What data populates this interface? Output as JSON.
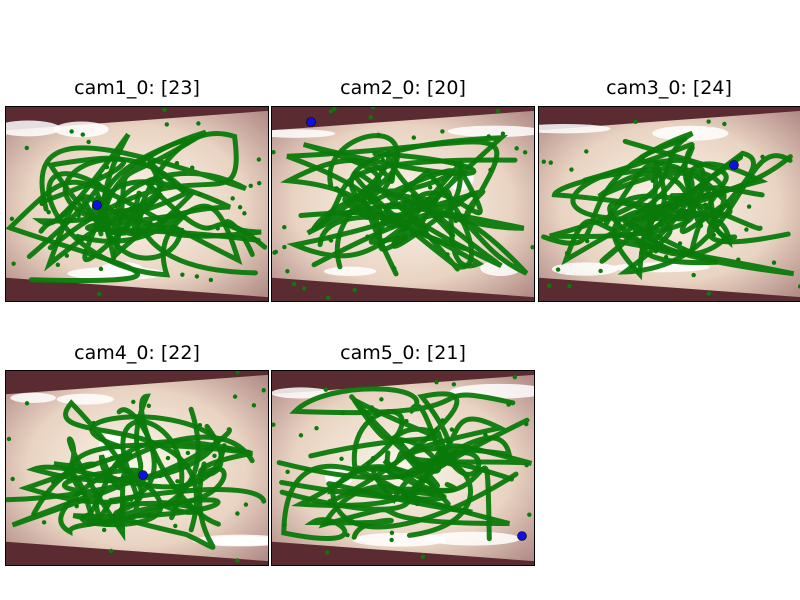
{
  "panels": [
    {
      "title": "cam1_0: [23]"
    },
    {
      "title": "cam2_0: [20]"
    },
    {
      "title": "cam3_0: [24]"
    },
    {
      "title": "cam4_0: [22]"
    },
    {
      "title": "cam5_0: [21]"
    }
  ],
  "colors": {
    "background": "#ffffff",
    "track": "#0a7a0a",
    "marker": "#1010e0",
    "frame_dark": "#5a2b30",
    "frame_light": "#f7ecd8"
  }
}
